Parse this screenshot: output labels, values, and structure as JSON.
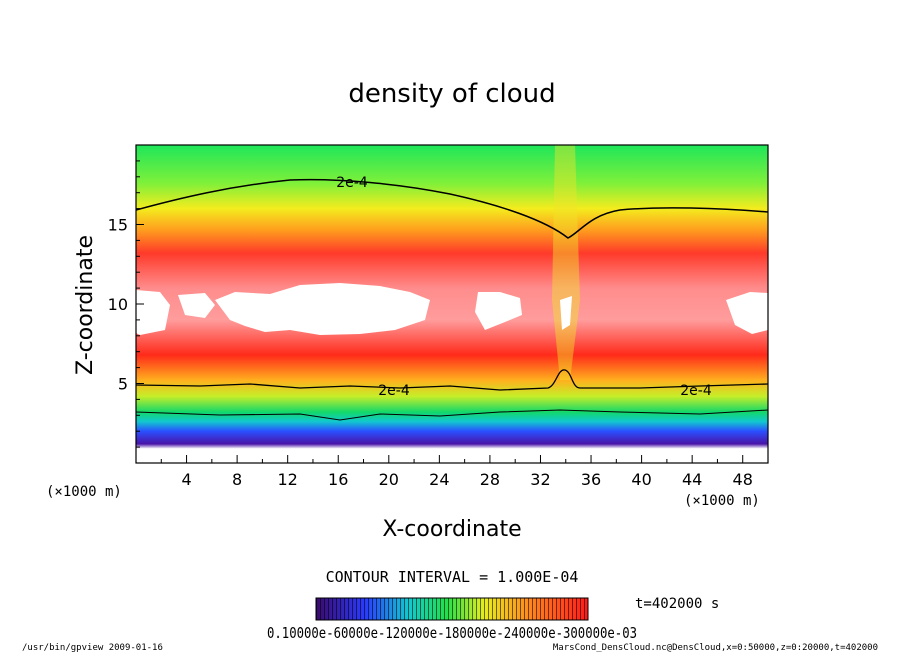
{
  "chart_data": {
    "type": "heatmap",
    "title": "density of cloud",
    "xlabel": "X-coordinate",
    "ylabel": "Z-coordinate",
    "x_unit": "(×1000 m)",
    "y_unit": "(×1000 m)",
    "xlim": [
      0,
      50
    ],
    "ylim": [
      0,
      20
    ],
    "x_ticks": [
      "4",
      "8",
      "12",
      "16",
      "20",
      "24",
      "28",
      "32",
      "36",
      "40",
      "44",
      "48"
    ],
    "y_ticks": [
      "5",
      "10",
      "15"
    ],
    "contour_label": "2e-4",
    "contour_interval": "CONTOUR INTERVAL = 1.000E-04",
    "time_label": "t=402000 s",
    "colorbar_labels": "0.10000e-60000e-120000e-180000e-240000e-300000e-03",
    "colorbar_range": [
      0.0,
      0.0003
    ],
    "colors": {
      "low": "#3a0a6b",
      "mid": "#22e04a",
      "high": "#ff2a2a",
      "white": "#ffffff"
    }
  },
  "footer": {
    "left": "/usr/bin/gpview  2009-01-16",
    "right": "MarsCond_DensCloud.nc@DensCloud,x=0:50000,z=0:20000,t=402000"
  }
}
